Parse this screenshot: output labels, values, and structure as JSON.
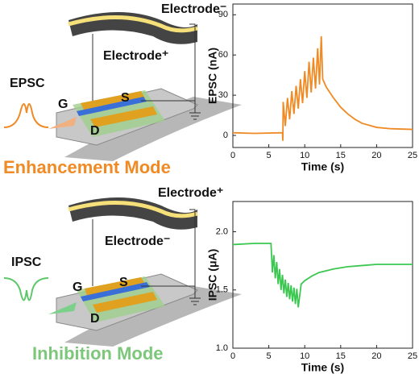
{
  "chart_data": [
    {
      "type": "line",
      "x_label": "Time (s)",
      "y_label": "EPSC (nA)",
      "color": "#f08a24",
      "xlim": [
        0,
        25
      ],
      "xticks": [
        0,
        5,
        10,
        15,
        20,
        25
      ],
      "ylim": [
        -9,
        98
      ],
      "yticks": [
        0,
        30,
        60,
        90
      ],
      "x": [
        0,
        3,
        6.9,
        6.95,
        7.0,
        7.3,
        7.6,
        7.9,
        8.2,
        8.5,
        8.8,
        9.1,
        9.4,
        9.7,
        10.0,
        10.3,
        10.6,
        10.9,
        11.2,
        11.5,
        11.8,
        12.05,
        12.3,
        12.5,
        13,
        14,
        15,
        16,
        17,
        18,
        19,
        20,
        22,
        25
      ],
      "values": [
        2,
        1.5,
        2,
        -4,
        25,
        7,
        28,
        12,
        33,
        16,
        37,
        20,
        42,
        24,
        48,
        28,
        55,
        32,
        58,
        35,
        65,
        38,
        74,
        42,
        36,
        28,
        21,
        16,
        12,
        9,
        7.5,
        6,
        5,
        4.5
      ]
    },
    {
      "type": "line",
      "x_label": "Time (s)",
      "y_label": "IPSC (μA)",
      "color": "#3cc850",
      "xlim": [
        0,
        25
      ],
      "xticks": [
        0,
        5,
        10,
        15,
        20,
        25
      ],
      "ylim": [
        1.0,
        2.26
      ],
      "yticks": [
        {
          "value": 1.0,
          "label": "1.0"
        },
        1.5,
        {
          "value": 2.0,
          "label": "2.0"
        }
      ],
      "x": [
        0,
        3,
        5.3,
        5.4,
        5.5,
        5.7,
        5.9,
        6.1,
        6.3,
        6.5,
        6.7,
        6.9,
        7.1,
        7.3,
        7.5,
        7.7,
        7.9,
        8.1,
        8.3,
        8.5,
        8.7,
        8.9,
        9.1,
        9.5,
        10,
        11,
        12,
        14,
        16,
        18,
        20,
        25
      ],
      "values": [
        1.89,
        1.9,
        1.9,
        1.78,
        1.65,
        1.8,
        1.6,
        1.74,
        1.55,
        1.68,
        1.5,
        1.63,
        1.47,
        1.59,
        1.44,
        1.56,
        1.42,
        1.54,
        1.4,
        1.52,
        1.38,
        1.51,
        1.35,
        1.55,
        1.58,
        1.62,
        1.65,
        1.68,
        1.7,
        1.71,
        1.72,
        1.72
      ]
    }
  ],
  "diagrams": [
    {
      "electrode_top": "Electrode⁻",
      "electrode_bottom": "Electrode⁺",
      "signal": "EPSC",
      "gate": "G",
      "source": "S",
      "drain": "D",
      "mode": "Enhancement Mode"
    },
    {
      "electrode_top": "Electrode⁺",
      "electrode_bottom": "Electrode⁻",
      "signal": "IPSC",
      "gate": "G",
      "source": "S",
      "drain": "D",
      "mode": "Inhibition Mode"
    }
  ]
}
